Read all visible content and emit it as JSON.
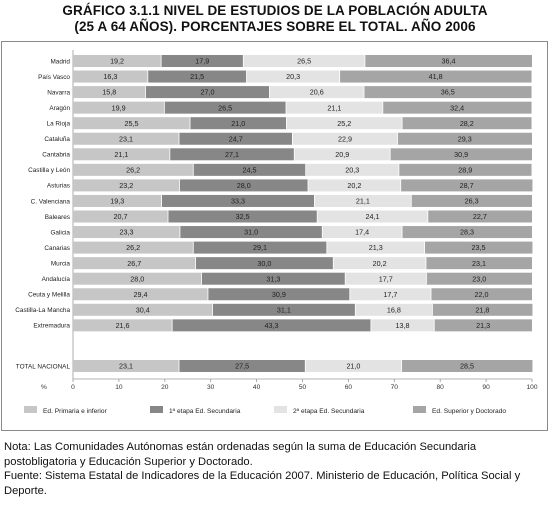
{
  "header": {
    "title_line1": "GRÁFICO 3.1.1 NIVEL DE ESTUDIOS DE LA POBLACIÓN ADULTA",
    "title_line2": "(25 A 64 AÑOS). PORCENTAJES SOBRE EL TOTAL. AÑO 2006"
  },
  "notes": {
    "note": "Nota: Las Comunidades Autónomas están ordenadas según la suma de Educación Secundaria postobligatoria y Educación Superior y Doctorado.",
    "source": "Fuente: Sistema Estatal de Indicadores de la Educación 2007. Ministerio de Educación, Política Social y Deporte."
  },
  "colors": {
    "primaria": "#c6c6c6",
    "etapa1": "#878787",
    "etapa2": "#e3e3e3",
    "superior": "#a5a5a5",
    "separator": "#ffffff"
  },
  "chart_data": {
    "type": "bar",
    "orientation": "horizontal",
    "stacked": true,
    "xlabel": "%",
    "xlim": [
      0,
      100
    ],
    "xticks": [
      0,
      10,
      20,
      30,
      40,
      50,
      60,
      70,
      80,
      90,
      100
    ],
    "legend_position": "bottom",
    "categories": [
      "Madrid",
      "País Vasco",
      "Navarra",
      "Aragón",
      "La Rioja",
      "Cataluña",
      "Cantabria",
      "Castilla y León",
      "Asturias",
      "C. Valenciana",
      "Baleares",
      "Galicia",
      "Canarias",
      "Murcia",
      "Andalucía",
      "Ceuta y Melilla",
      "Castilla-La Mancha",
      "Extremadura",
      "TOTAL NACIONAL"
    ],
    "series": [
      {
        "name": "Ed. Primaria e inferior",
        "values": [
          19.2,
          16.3,
          15.8,
          19.9,
          25.5,
          23.1,
          21.1,
          26.2,
          23.2,
          19.3,
          20.7,
          23.3,
          26.2,
          26.7,
          28.0,
          29.4,
          30.4,
          21.6,
          23.1
        ]
      },
      {
        "name": "1ª etapa Ed. Secundaria",
        "values": [
          17.9,
          21.5,
          27.0,
          26.5,
          21.0,
          24.7,
          27.1,
          24.5,
          28.0,
          33.3,
          32.5,
          31.0,
          29.1,
          30.0,
          31.3,
          30.9,
          31.1,
          43.3,
          27.5
        ]
      },
      {
        "name": "2ª etapa Ed. Secundaria",
        "values": [
          26.5,
          20.3,
          20.6,
          21.1,
          25.2,
          22.9,
          20.9,
          20.3,
          20.2,
          21.1,
          24.1,
          17.4,
          21.3,
          20.2,
          17.7,
          17.7,
          16.8,
          13.8,
          21.0
        ]
      },
      {
        "name": "Ed. Superior y Doctorado",
        "values": [
          36.4,
          41.8,
          36.5,
          32.4,
          28.2,
          29.3,
          30.9,
          28.9,
          28.7,
          26.3,
          22.7,
          28.3,
          23.5,
          23.1,
          23.0,
          22.0,
          21.8,
          21.3,
          28.5
        ]
      }
    ]
  }
}
